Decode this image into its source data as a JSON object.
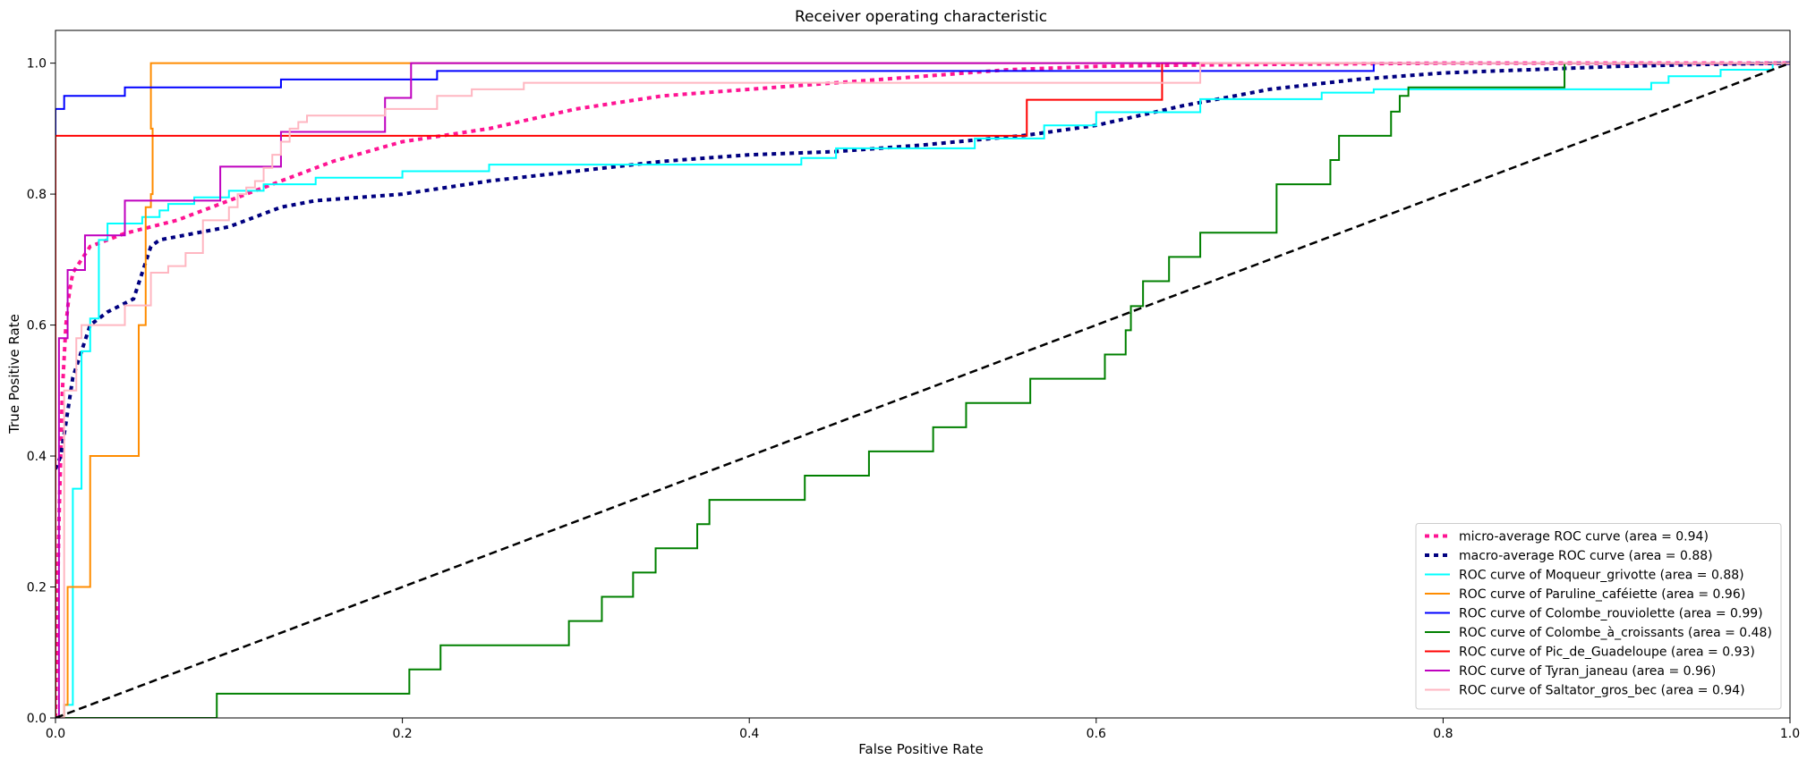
{
  "chart_data": {
    "type": "line",
    "title": "Receiver operating characteristic",
    "xlabel": "False Positive Rate",
    "ylabel": "True Positive Rate",
    "xlim": [
      0.0,
      1.0
    ],
    "ylim": [
      0.0,
      1.05
    ],
    "xticks": [
      0.0,
      0.2,
      0.4,
      0.6,
      0.8,
      1.0
    ],
    "yticks": [
      0.0,
      0.2,
      0.4,
      0.6,
      0.8,
      1.0
    ],
    "xtick_labels": [
      "0.0",
      "0.2",
      "0.4",
      "0.6",
      "0.8",
      "1.0"
    ],
    "ytick_labels": [
      "0.0",
      "0.2",
      "0.4",
      "0.6",
      "0.8",
      "1.0"
    ],
    "grid": false,
    "legend_position": "bottom-right",
    "series": [
      {
        "name": "micro-average ROC curve (area = 0.94)",
        "color": "#ff1493",
        "style": "dotted",
        "width": 4,
        "x": [
          0.0,
          0.002,
          0.004,
          0.006,
          0.008,
          0.01,
          0.015,
          0.02,
          0.03,
          0.04,
          0.055,
          0.07,
          0.09,
          0.11,
          0.13,
          0.16,
          0.2,
          0.25,
          0.3,
          0.35,
          0.4,
          0.45,
          0.5,
          0.55,
          0.6,
          0.65,
          0.7,
          0.75,
          0.8,
          0.9,
          1.0
        ],
        "y": [
          0.0,
          0.3,
          0.5,
          0.6,
          0.65,
          0.68,
          0.7,
          0.72,
          0.73,
          0.74,
          0.75,
          0.76,
          0.78,
          0.8,
          0.82,
          0.85,
          0.88,
          0.9,
          0.93,
          0.95,
          0.96,
          0.97,
          0.98,
          0.99,
          0.995,
          0.997,
          0.998,
          0.999,
          1.0,
          1.0,
          1.0
        ]
      },
      {
        "name": "macro-average ROC curve (area = 0.88)",
        "color": "#000080",
        "style": "dotted",
        "width": 4,
        "x": [
          0.0,
          0.003,
          0.006,
          0.01,
          0.02,
          0.03,
          0.045,
          0.055,
          0.06,
          0.08,
          0.1,
          0.12,
          0.13,
          0.15,
          0.2,
          0.25,
          0.3,
          0.35,
          0.4,
          0.45,
          0.5,
          0.56,
          0.6,
          0.65,
          0.7,
          0.75,
          0.8,
          0.85,
          0.9,
          0.95,
          1.0
        ],
        "y": [
          0.38,
          0.4,
          0.45,
          0.52,
          0.6,
          0.62,
          0.64,
          0.72,
          0.73,
          0.74,
          0.75,
          0.77,
          0.78,
          0.79,
          0.8,
          0.82,
          0.835,
          0.85,
          0.86,
          0.865,
          0.875,
          0.89,
          0.905,
          0.935,
          0.96,
          0.975,
          0.985,
          0.99,
          0.995,
          0.998,
          1.0
        ]
      },
      {
        "name": "ROC curve of Moqueur_grivotte (area = 0.88)",
        "color": "#00ffff",
        "style": "solid",
        "width": 2,
        "x": [
          0.0,
          0.005,
          0.005,
          0.01,
          0.01,
          0.015,
          0.015,
          0.02,
          0.02,
          0.025,
          0.025,
          0.03,
          0.03,
          0.05,
          0.05,
          0.06,
          0.06,
          0.065,
          0.065,
          0.08,
          0.08,
          0.1,
          0.1,
          0.12,
          0.12,
          0.15,
          0.15,
          0.2,
          0.2,
          0.25,
          0.25,
          0.43,
          0.43,
          0.45,
          0.45,
          0.53,
          0.53,
          0.57,
          0.57,
          0.6,
          0.6,
          0.66,
          0.66,
          0.73,
          0.73,
          0.76,
          0.76,
          0.92,
          0.92,
          0.93,
          0.93,
          0.96,
          0.96,
          0.99,
          0.99,
          1.0
        ],
        "y": [
          0.0,
          0.0,
          0.02,
          0.02,
          0.35,
          0.35,
          0.56,
          0.56,
          0.61,
          0.61,
          0.73,
          0.73,
          0.755,
          0.755,
          0.765,
          0.765,
          0.775,
          0.775,
          0.785,
          0.785,
          0.795,
          0.795,
          0.805,
          0.805,
          0.815,
          0.815,
          0.825,
          0.825,
          0.835,
          0.835,
          0.845,
          0.845,
          0.855,
          0.855,
          0.87,
          0.87,
          0.885,
          0.885,
          0.905,
          0.905,
          0.925,
          0.925,
          0.945,
          0.945,
          0.955,
          0.955,
          0.96,
          0.96,
          0.97,
          0.97,
          0.98,
          0.98,
          0.99,
          0.99,
          1.0,
          1.0
        ]
      },
      {
        "name": "ROC curve of Paruline_caféiette (area = 0.96)",
        "color": "#ff8c00",
        "style": "solid",
        "width": 2,
        "x": [
          0.0,
          0.005,
          0.005,
          0.007,
          0.007,
          0.02,
          0.02,
          0.048,
          0.048,
          0.052,
          0.052,
          0.055,
          0.055,
          0.056,
          0.056,
          0.055,
          0.055,
          0.205,
          1.0
        ],
        "y": [
          0.0,
          0.0,
          0.02,
          0.02,
          0.2,
          0.2,
          0.4,
          0.4,
          0.6,
          0.6,
          0.78,
          0.78,
          0.8,
          0.8,
          0.9,
          0.9,
          1.0,
          1.0,
          1.0
        ]
      },
      {
        "name": "ROC curve of Colombe_rouviolette (area = 0.99)",
        "color": "#0000ff",
        "style": "solid",
        "width": 2,
        "x": [
          0.0,
          0.0,
          0.005,
          0.005,
          0.04,
          0.04,
          0.13,
          0.13,
          0.22,
          0.22,
          0.76,
          0.76,
          1.0
        ],
        "y": [
          0.0,
          0.93,
          0.93,
          0.95,
          0.95,
          0.963,
          0.963,
          0.975,
          0.975,
          0.988,
          0.988,
          1.0,
          1.0
        ]
      },
      {
        "name": "ROC curve of Colombe_à_croissants (area = 0.48)",
        "color": "#008000",
        "style": "solid",
        "width": 2,
        "x": [
          0.0,
          0.093,
          0.093,
          0.204,
          0.204,
          0.222,
          0.222,
          0.296,
          0.296,
          0.315,
          0.315,
          0.333,
          0.333,
          0.346,
          0.346,
          0.37,
          0.37,
          0.377,
          0.377,
          0.432,
          0.432,
          0.469,
          0.469,
          0.506,
          0.506,
          0.525,
          0.525,
          0.562,
          0.562,
          0.605,
          0.605,
          0.617,
          0.617,
          0.62,
          0.62,
          0.627,
          0.627,
          0.642,
          0.642,
          0.66,
          0.66,
          0.704,
          0.704,
          0.735,
          0.735,
          0.74,
          0.74,
          0.77,
          0.77,
          0.775,
          0.775,
          0.78,
          0.78,
          0.87,
          0.87,
          1.0
        ],
        "y": [
          0.0,
          0.0,
          0.037,
          0.037,
          0.074,
          0.074,
          0.111,
          0.111,
          0.148,
          0.148,
          0.185,
          0.185,
          0.222,
          0.222,
          0.259,
          0.259,
          0.296,
          0.296,
          0.333,
          0.333,
          0.37,
          0.37,
          0.407,
          0.407,
          0.444,
          0.444,
          0.481,
          0.481,
          0.518,
          0.518,
          0.555,
          0.555,
          0.592,
          0.592,
          0.629,
          0.629,
          0.667,
          0.667,
          0.704,
          0.704,
          0.741,
          0.741,
          0.815,
          0.815,
          0.852,
          0.852,
          0.889,
          0.889,
          0.926,
          0.926,
          0.95,
          0.95,
          0.963,
          0.963,
          1.0,
          1.0
        ]
      },
      {
        "name": "ROC curve of Pic_de_Guadeloupe (area = 0.93)",
        "color": "#ff0000",
        "style": "solid",
        "width": 2,
        "x": [
          0.0,
          0.0,
          0.56,
          0.56,
          0.638,
          0.638,
          1.0
        ],
        "y": [
          0.0,
          0.889,
          0.889,
          0.944,
          0.944,
          1.0,
          1.0
        ]
      },
      {
        "name": "ROC curve of Tyran_janeau (area = 0.96)",
        "color": "#bf00bf",
        "style": "solid",
        "width": 2,
        "x": [
          0.0,
          0.002,
          0.002,
          0.007,
          0.007,
          0.017,
          0.017,
          0.04,
          0.04,
          0.095,
          0.095,
          0.13,
          0.13,
          0.19,
          0.19,
          0.205,
          0.205,
          1.0
        ],
        "y": [
          0.0,
          0.0,
          0.58,
          0.58,
          0.684,
          0.684,
          0.737,
          0.737,
          0.79,
          0.79,
          0.842,
          0.842,
          0.895,
          0.895,
          0.947,
          0.947,
          1.0,
          1.0
        ]
      },
      {
        "name": "ROC curve of Saltator_gros_bec (area = 0.94)",
        "color": "#ffb6c1",
        "style": "solid",
        "width": 2,
        "x": [
          0.0,
          0.005,
          0.005,
          0.012,
          0.012,
          0.015,
          0.015,
          0.04,
          0.04,
          0.055,
          0.055,
          0.065,
          0.065,
          0.075,
          0.075,
          0.085,
          0.085,
          0.1,
          0.1,
          0.105,
          0.105,
          0.11,
          0.11,
          0.115,
          0.115,
          0.12,
          0.12,
          0.125,
          0.125,
          0.13,
          0.13,
          0.135,
          0.135,
          0.14,
          0.14,
          0.145,
          0.145,
          0.19,
          0.19,
          0.22,
          0.22,
          0.24,
          0.24,
          0.27,
          0.27,
          0.66,
          0.66,
          1.0
        ],
        "y": [
          0.0,
          0.0,
          0.5,
          0.5,
          0.58,
          0.58,
          0.6,
          0.6,
          0.63,
          0.63,
          0.68,
          0.68,
          0.69,
          0.69,
          0.71,
          0.71,
          0.76,
          0.76,
          0.78,
          0.78,
          0.8,
          0.8,
          0.81,
          0.81,
          0.82,
          0.82,
          0.84,
          0.84,
          0.86,
          0.86,
          0.88,
          0.88,
          0.9,
          0.9,
          0.91,
          0.91,
          0.92,
          0.92,
          0.93,
          0.93,
          0.95,
          0.95,
          0.96,
          0.96,
          0.97,
          0.97,
          1.0,
          1.0
        ]
      },
      {
        "name": "chance",
        "color": "#000000",
        "style": "dashed",
        "width": 2.5,
        "legend": false,
        "x": [
          0.0,
          1.0
        ],
        "y": [
          0.0,
          1.0
        ]
      }
    ]
  }
}
